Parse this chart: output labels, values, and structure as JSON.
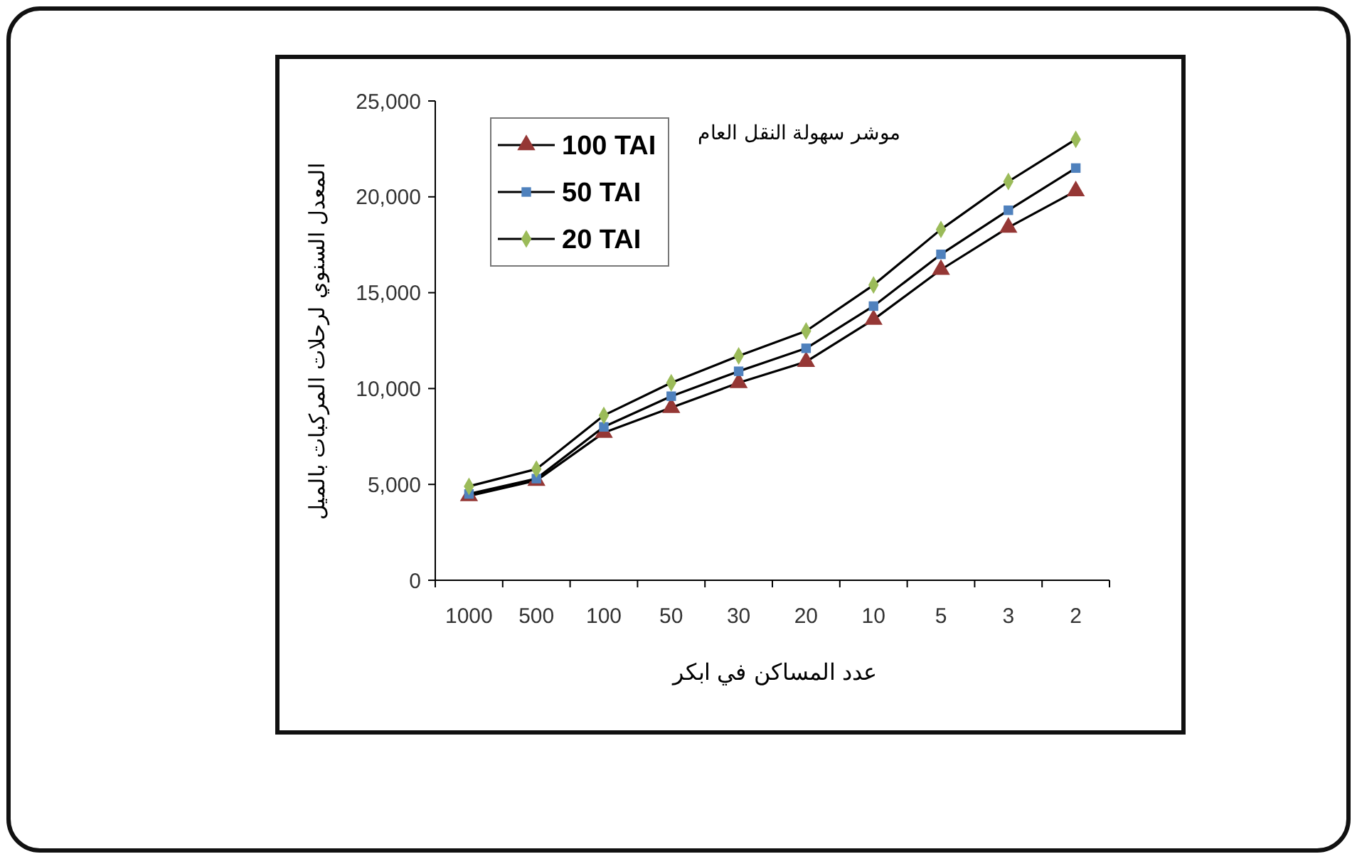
{
  "chart_data": {
    "type": "line",
    "title": "موشر سهولة النقل العام",
    "xlabel": "عدد المساكن في ابكر",
    "ylabel": "المعدل السنوي لرحلات المركبات بالميل",
    "categories": [
      "1000",
      "500",
      "100",
      "50",
      "30",
      "20",
      "10",
      "5",
      "3",
      "2"
    ],
    "series": [
      {
        "name": "100 TAI",
        "color": "#953735",
        "marker": "triangle",
        "values": [
          4400,
          5200,
          7700,
          9000,
          10300,
          11400,
          13600,
          16200,
          18400,
          20300
        ]
      },
      {
        "name": "50 TAI",
        "color": "#4f81bd",
        "marker": "square",
        "values": [
          4500,
          5300,
          8000,
          9600,
          10900,
          12100,
          14300,
          17000,
          19300,
          21500
        ]
      },
      {
        "name": "20 TAI",
        "color": "#9bbb59",
        "marker": "diamond",
        "values": [
          4900,
          5800,
          8600,
          10300,
          11700,
          13000,
          15400,
          18300,
          20800,
          23000
        ]
      }
    ],
    "ylim": [
      0,
      25000
    ],
    "yticks": [
      {
        "value": 0,
        "label": "0"
      },
      {
        "value": 5000,
        "label": "5,000"
      },
      {
        "value": 10000,
        "label": "10,000"
      },
      {
        "value": 15000,
        "label": "15,000"
      },
      {
        "value": 20000,
        "label": "20,000"
      },
      {
        "value": 25000,
        "label": "25,000"
      }
    ],
    "grid": false,
    "legend": "top left"
  }
}
